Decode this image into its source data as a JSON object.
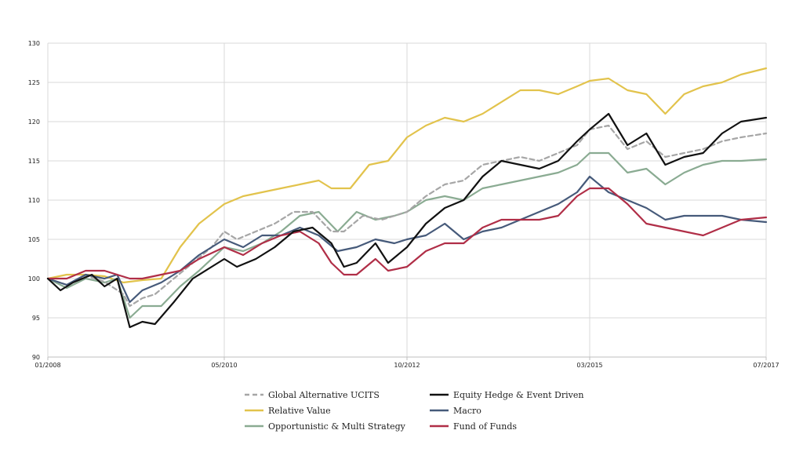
{
  "chart_data": {
    "type": "line",
    "title": "",
    "xlabel": "",
    "ylabel": "",
    "ylim": [
      90,
      130
    ],
    "yticks": [
      90,
      95,
      100,
      105,
      110,
      115,
      120,
      125,
      130
    ],
    "xlim": [
      "2008-01",
      "2017-07"
    ],
    "xticks": [
      {
        "date": "2008-01",
        "label": "01/2008"
      },
      {
        "date": "2010-05",
        "label": "05/2010"
      },
      {
        "date": "2012-10",
        "label": "10/2012"
      },
      {
        "date": "2015-03",
        "label": "03/2015"
      },
      {
        "date": "2017-07",
        "label": "07/2017"
      }
    ],
    "grid": true,
    "legend_position": "bottom",
    "series": [
      {
        "name": "Global Alternative UCITS",
        "color": "#a6a6a6",
        "dashed": true,
        "points": [
          [
            "2008-01",
            100.0
          ],
          [
            "2008-04",
            99.2
          ],
          [
            "2008-07",
            100.4
          ],
          [
            "2008-10",
            99.6
          ],
          [
            "2009-01",
            98.0
          ],
          [
            "2009-02",
            96.5
          ],
          [
            "2009-04",
            97.5
          ],
          [
            "2009-06",
            98.0
          ],
          [
            "2009-09",
            100.0
          ],
          [
            "2009-12",
            102.0
          ],
          [
            "2010-03",
            104.0
          ],
          [
            "2010-05",
            106.0
          ],
          [
            "2010-07",
            105.0
          ],
          [
            "2010-10",
            106.0
          ],
          [
            "2011-01",
            107.0
          ],
          [
            "2011-04",
            108.5
          ],
          [
            "2011-07",
            108.5
          ],
          [
            "2011-10",
            106.0
          ],
          [
            "2011-12",
            106.0
          ],
          [
            "2012-03",
            108.0
          ],
          [
            "2012-06",
            107.5
          ],
          [
            "2012-10",
            108.5
          ],
          [
            "2013-01",
            110.5
          ],
          [
            "2013-04",
            112.0
          ],
          [
            "2013-07",
            112.5
          ],
          [
            "2013-10",
            114.5
          ],
          [
            "2014-01",
            115.0
          ],
          [
            "2014-04",
            115.5
          ],
          [
            "2014-07",
            115.0
          ],
          [
            "2014-10",
            116.0
          ],
          [
            "2015-01",
            117.0
          ],
          [
            "2015-03",
            119.0
          ],
          [
            "2015-06",
            119.5
          ],
          [
            "2015-09",
            116.5
          ],
          [
            "2015-12",
            117.5
          ],
          [
            "2016-03",
            115.5
          ],
          [
            "2016-06",
            116.0
          ],
          [
            "2016-09",
            116.5
          ],
          [
            "2016-12",
            117.5
          ],
          [
            "2017-03",
            118.0
          ],
          [
            "2017-07",
            118.5
          ]
        ]
      },
      {
        "name": "Equity Hedge & Event Driven",
        "color": "#111111",
        "dashed": false,
        "points": [
          [
            "2008-01",
            100.0
          ],
          [
            "2008-03",
            98.5
          ],
          [
            "2008-05",
            99.5
          ],
          [
            "2008-08",
            100.5
          ],
          [
            "2008-10",
            99.0
          ],
          [
            "2008-12",
            100.0
          ],
          [
            "2009-02",
            93.8
          ],
          [
            "2009-04",
            94.5
          ],
          [
            "2009-06",
            94.2
          ],
          [
            "2009-09",
            97.0
          ],
          [
            "2009-12",
            100.0
          ],
          [
            "2010-03",
            101.5
          ],
          [
            "2010-05",
            102.5
          ],
          [
            "2010-07",
            101.5
          ],
          [
            "2010-10",
            102.5
          ],
          [
            "2011-01",
            104.0
          ],
          [
            "2011-04",
            106.0
          ],
          [
            "2011-07",
            106.5
          ],
          [
            "2011-10",
            104.5
          ],
          [
            "2011-12",
            101.5
          ],
          [
            "2012-02",
            102.0
          ],
          [
            "2012-05",
            104.5
          ],
          [
            "2012-07",
            102.0
          ],
          [
            "2012-10",
            104.0
          ],
          [
            "2013-01",
            107.0
          ],
          [
            "2013-04",
            109.0
          ],
          [
            "2013-07",
            110.0
          ],
          [
            "2013-10",
            113.0
          ],
          [
            "2014-01",
            115.0
          ],
          [
            "2014-04",
            114.5
          ],
          [
            "2014-07",
            114.0
          ],
          [
            "2014-10",
            115.0
          ],
          [
            "2015-01",
            117.5
          ],
          [
            "2015-03",
            119.0
          ],
          [
            "2015-06",
            121.0
          ],
          [
            "2015-09",
            117.0
          ],
          [
            "2015-12",
            118.5
          ],
          [
            "2016-03",
            114.5
          ],
          [
            "2016-06",
            115.5
          ],
          [
            "2016-09",
            116.0
          ],
          [
            "2016-12",
            118.5
          ],
          [
            "2017-03",
            120.0
          ],
          [
            "2017-07",
            120.5
          ]
        ]
      },
      {
        "name": "Relative Value",
        "color": "#e2c34c",
        "dashed": false,
        "points": [
          [
            "2008-01",
            100.0
          ],
          [
            "2008-04",
            100.5
          ],
          [
            "2008-07",
            100.5
          ],
          [
            "2008-10",
            100.3
          ],
          [
            "2009-01",
            99.5
          ],
          [
            "2009-04",
            99.8
          ],
          [
            "2009-07",
            100.0
          ],
          [
            "2009-10",
            104.0
          ],
          [
            "2010-01",
            107.0
          ],
          [
            "2010-05",
            109.5
          ],
          [
            "2010-08",
            110.5
          ],
          [
            "2010-11",
            111.0
          ],
          [
            "2011-02",
            111.5
          ],
          [
            "2011-05",
            112.0
          ],
          [
            "2011-08",
            112.5
          ],
          [
            "2011-10",
            111.5
          ],
          [
            "2012-01",
            111.5
          ],
          [
            "2012-04",
            114.5
          ],
          [
            "2012-07",
            115.0
          ],
          [
            "2012-10",
            118.0
          ],
          [
            "2013-01",
            119.5
          ],
          [
            "2013-04",
            120.5
          ],
          [
            "2013-07",
            120.0
          ],
          [
            "2013-10",
            121.0
          ],
          [
            "2014-01",
            122.5
          ],
          [
            "2014-04",
            124.0
          ],
          [
            "2014-07",
            124.0
          ],
          [
            "2014-10",
            123.5
          ],
          [
            "2015-01",
            124.5
          ],
          [
            "2015-03",
            125.2
          ],
          [
            "2015-06",
            125.5
          ],
          [
            "2015-09",
            124.0
          ],
          [
            "2015-12",
            123.5
          ],
          [
            "2016-03",
            121.0
          ],
          [
            "2016-06",
            123.5
          ],
          [
            "2016-09",
            124.5
          ],
          [
            "2016-12",
            125.0
          ],
          [
            "2017-03",
            126.0
          ],
          [
            "2017-07",
            126.8
          ]
        ]
      },
      {
        "name": "Macro",
        "color": "#465a7a",
        "dashed": false,
        "points": [
          [
            "2008-01",
            100.0
          ],
          [
            "2008-04",
            99.2
          ],
          [
            "2008-07",
            100.5
          ],
          [
            "2008-10",
            100.0
          ],
          [
            "2008-12",
            100.5
          ],
          [
            "2009-02",
            97.0
          ],
          [
            "2009-04",
            98.5
          ],
          [
            "2009-07",
            99.5
          ],
          [
            "2009-10",
            101.0
          ],
          [
            "2010-01",
            103.0
          ],
          [
            "2010-05",
            105.0
          ],
          [
            "2010-08",
            104.0
          ],
          [
            "2010-11",
            105.5
          ],
          [
            "2011-02",
            105.5
          ],
          [
            "2011-05",
            106.5
          ],
          [
            "2011-08",
            105.5
          ],
          [
            "2011-11",
            103.5
          ],
          [
            "2012-02",
            104.0
          ],
          [
            "2012-05",
            105.0
          ],
          [
            "2012-08",
            104.5
          ],
          [
            "2012-10",
            105.0
          ],
          [
            "2013-01",
            105.5
          ],
          [
            "2013-04",
            107.0
          ],
          [
            "2013-07",
            105.0
          ],
          [
            "2013-10",
            106.0
          ],
          [
            "2014-01",
            106.5
          ],
          [
            "2014-04",
            107.5
          ],
          [
            "2014-07",
            108.5
          ],
          [
            "2014-10",
            109.5
          ],
          [
            "2015-01",
            111.0
          ],
          [
            "2015-03",
            113.0
          ],
          [
            "2015-06",
            111.0
          ],
          [
            "2015-09",
            110.0
          ],
          [
            "2015-12",
            109.0
          ],
          [
            "2016-03",
            107.5
          ],
          [
            "2016-06",
            108.0
          ],
          [
            "2016-09",
            108.0
          ],
          [
            "2016-12",
            108.0
          ],
          [
            "2017-03",
            107.5
          ],
          [
            "2017-07",
            107.2
          ]
        ]
      },
      {
        "name": "Opportunistic & Multi Strategy",
        "color": "#8aab92",
        "dashed": false,
        "points": [
          [
            "2008-01",
            100.0
          ],
          [
            "2008-04",
            98.8
          ],
          [
            "2008-07",
            100.0
          ],
          [
            "2008-10",
            99.5
          ],
          [
            "2008-12",
            100.0
          ],
          [
            "2009-02",
            95.0
          ],
          [
            "2009-04",
            96.5
          ],
          [
            "2009-07",
            96.5
          ],
          [
            "2009-10",
            99.0
          ],
          [
            "2010-01",
            101.0
          ],
          [
            "2010-05",
            104.0
          ],
          [
            "2010-08",
            103.5
          ],
          [
            "2010-11",
            104.5
          ],
          [
            "2011-02",
            106.0
          ],
          [
            "2011-05",
            108.0
          ],
          [
            "2011-08",
            108.5
          ],
          [
            "2011-11",
            106.0
          ],
          [
            "2012-02",
            108.5
          ],
          [
            "2012-05",
            107.5
          ],
          [
            "2012-08",
            108.0
          ],
          [
            "2012-10",
            108.5
          ],
          [
            "2013-01",
            110.0
          ],
          [
            "2013-04",
            110.5
          ],
          [
            "2013-07",
            110.0
          ],
          [
            "2013-10",
            111.5
          ],
          [
            "2014-01",
            112.0
          ],
          [
            "2014-04",
            112.5
          ],
          [
            "2014-07",
            113.0
          ],
          [
            "2014-10",
            113.5
          ],
          [
            "2015-01",
            114.5
          ],
          [
            "2015-03",
            116.0
          ],
          [
            "2015-06",
            116.0
          ],
          [
            "2015-09",
            113.5
          ],
          [
            "2015-12",
            114.0
          ],
          [
            "2016-03",
            112.0
          ],
          [
            "2016-06",
            113.5
          ],
          [
            "2016-09",
            114.5
          ],
          [
            "2016-12",
            115.0
          ],
          [
            "2017-03",
            115.0
          ],
          [
            "2017-07",
            115.2
          ]
        ]
      },
      {
        "name": "Fund of Funds",
        "color": "#b02e47",
        "dashed": false,
        "points": [
          [
            "2008-01",
            100.0
          ],
          [
            "2008-04",
            100.0
          ],
          [
            "2008-07",
            101.0
          ],
          [
            "2008-10",
            101.0
          ],
          [
            "2008-12",
            100.5
          ],
          [
            "2009-02",
            100.0
          ],
          [
            "2009-04",
            100.0
          ],
          [
            "2009-07",
            100.5
          ],
          [
            "2009-10",
            101.0
          ],
          [
            "2010-01",
            102.5
          ],
          [
            "2010-05",
            104.0
          ],
          [
            "2010-08",
            103.0
          ],
          [
            "2010-11",
            104.5
          ],
          [
            "2011-02",
            105.5
          ],
          [
            "2011-05",
            106.0
          ],
          [
            "2011-08",
            104.5
          ],
          [
            "2011-10",
            102.0
          ],
          [
            "2011-12",
            100.5
          ],
          [
            "2012-02",
            100.5
          ],
          [
            "2012-05",
            102.5
          ],
          [
            "2012-07",
            101.0
          ],
          [
            "2012-10",
            101.5
          ],
          [
            "2013-01",
            103.5
          ],
          [
            "2013-04",
            104.5
          ],
          [
            "2013-07",
            104.5
          ],
          [
            "2013-10",
            106.5
          ],
          [
            "2014-01",
            107.5
          ],
          [
            "2014-04",
            107.5
          ],
          [
            "2014-07",
            107.5
          ],
          [
            "2014-10",
            108.0
          ],
          [
            "2015-01",
            110.5
          ],
          [
            "2015-03",
            111.5
          ],
          [
            "2015-06",
            111.5
          ],
          [
            "2015-09",
            109.5
          ],
          [
            "2015-12",
            107.0
          ],
          [
            "2016-03",
            106.5
          ],
          [
            "2016-06",
            106.0
          ],
          [
            "2016-09",
            105.5
          ],
          [
            "2016-12",
            106.5
          ],
          [
            "2017-03",
            107.5
          ],
          [
            "2017-07",
            107.8
          ]
        ]
      }
    ],
    "legend_order": [
      "Global Alternative UCITS",
      "Equity Hedge & Event Driven",
      "Relative Value",
      "Macro",
      "Opportunistic & Multi Strategy",
      "Fund of Funds"
    ]
  }
}
